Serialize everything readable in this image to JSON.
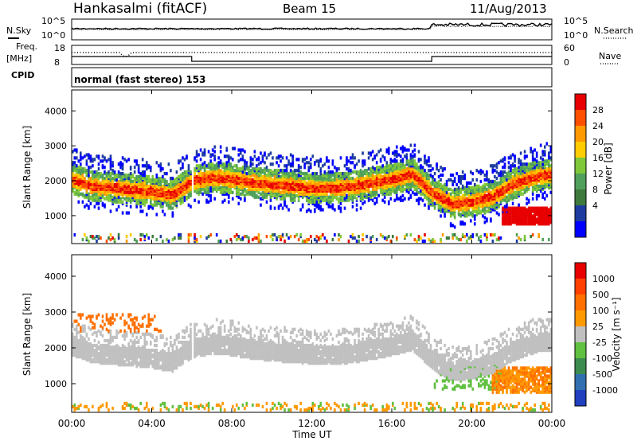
{
  "header": {
    "station": "Hankasalmi (fitACF)",
    "beam": "Beam 15",
    "date": "11/Aug/2013"
  },
  "top_panels": {
    "nsky_label": "N.Sky",
    "nsearch_label": "N.Search",
    "freq_label_1": "Freq.",
    "freq_label_2": "[MHz]",
    "nave_label": "Nave",
    "cpid_label": "CPID",
    "cpid_text": "normal (fast stereo) 153",
    "noise_ticks": [
      "10^5",
      "10^0"
    ],
    "noise_ticks_right": [
      "10^5",
      "10^0"
    ],
    "freq_ticks": [
      "18",
      "8"
    ],
    "nave_ticks": [
      "60",
      "0"
    ]
  },
  "chart_data": [
    {
      "type": "heatmap",
      "name": "power",
      "ylabel": "Slant Range [km]",
      "ylim": [
        200,
        4600
      ],
      "y_ticks": [
        1000,
        2000,
        3000,
        4000
      ],
      "xlim_hours": [
        0,
        24
      ],
      "colorbar": {
        "label": "Power [dB]",
        "ticks": [
          "28",
          "24",
          "20",
          "16",
          "12",
          "8",
          "4"
        ],
        "colors": [
          "#0000ff",
          "#1e3ca0",
          "#3d7a3c",
          "#4fa05a",
          "#7ec83a",
          "#ffcc00",
          "#ff9900",
          "#ff5000",
          "#e80000"
        ]
      },
      "band_main": {
        "hours": [
          0,
          1,
          2,
          3,
          4,
          5,
          6,
          7,
          8,
          9,
          10,
          11,
          12,
          13,
          14,
          15,
          16,
          17,
          18,
          19,
          20,
          21,
          22,
          23,
          24
        ],
        "range_km": [
          2000,
          1800,
          1750,
          1700,
          1650,
          1550,
          1950,
          2050,
          2000,
          1900,
          1850,
          1800,
          1750,
          1750,
          1800,
          1900,
          2000,
          2150,
          1600,
          1300,
          1350,
          1500,
          1850,
          2050,
          2150
        ]
      }
    },
    {
      "type": "heatmap",
      "name": "velocity",
      "ylabel": "Slant Range [km]",
      "ylim": [
        200,
        4600
      ],
      "y_ticks": [
        1000,
        2000,
        3000,
        4000
      ],
      "xlim_hours": [
        0,
        24
      ],
      "colorbar": {
        "label": "Velocity [m s⁻¹]",
        "ticks": [
          "1000",
          "500",
          "100",
          "25",
          "-25",
          "-100",
          "-500",
          "-1000"
        ],
        "colors": [
          "#2040c0",
          "#3070b0",
          "#3c8c50",
          "#60c040",
          "#c0c0c0",
          "#ff9900",
          "#ff7000",
          "#ff4000",
          "#e80000"
        ]
      }
    }
  ],
  "x_axis": {
    "label": "Time UT",
    "ticks": [
      "00:00",
      "04:00",
      "08:00",
      "12:00",
      "16:00",
      "20:00",
      "00:00"
    ]
  }
}
